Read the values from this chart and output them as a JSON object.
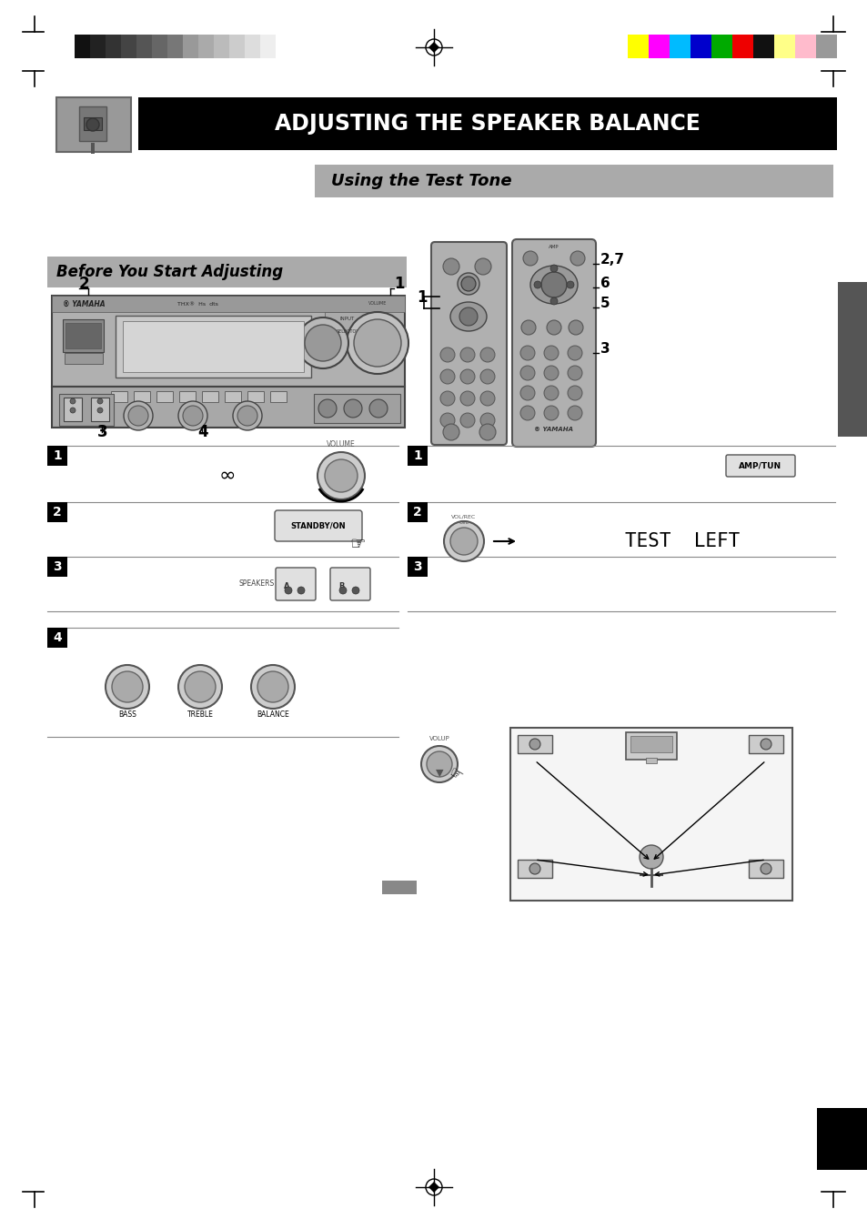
{
  "page_bg": "#ffffff",
  "title_text": "ADJUSTING THE SPEAKER BALANCE",
  "title_bg": "#000000",
  "title_color": "#ffffff",
  "subtitle_text": "Using the Test Tone",
  "subtitle_bg": "#aaaaaa",
  "subtitle_color": "#000000",
  "section_title": "Before You Start Adjusting",
  "section_bg": "#aaaaaa",
  "color_bars_left": [
    "#111111",
    "#222222",
    "#333333",
    "#444444",
    "#555555",
    "#666666",
    "#777777",
    "#999999",
    "#aaaaaa",
    "#bbbbbb",
    "#cccccc",
    "#dddddd",
    "#eeeeee",
    "#ffffff"
  ],
  "color_bars_right": [
    "#ffff00",
    "#ff00ff",
    "#00bbff",
    "#0000cc",
    "#00aa00",
    "#ee0000",
    "#111111",
    "#ffff88",
    "#ffbbcc",
    "#999999"
  ],
  "right_tab_color": "#555555",
  "black": "#000000",
  "white": "#ffffff",
  "dark_gray": "#444444",
  "mid_gray": "#888888",
  "light_gray": "#cccccc",
  "receiver_gray": "#aaaaaa",
  "test_left_text": "TEST  LEFT"
}
